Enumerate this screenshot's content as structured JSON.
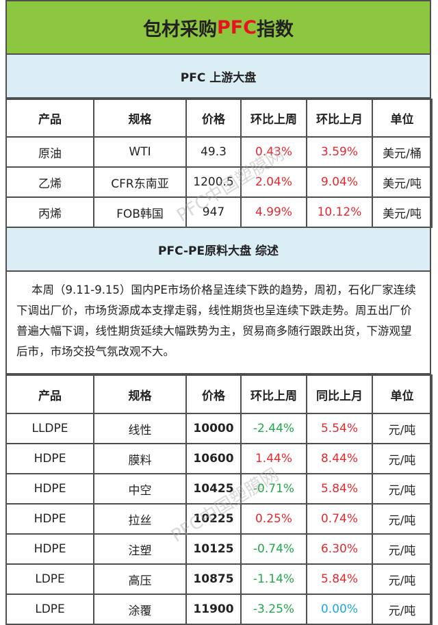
{
  "title": {
    "prefix": "包材采购",
    "highlight": "PFC",
    "suffix": "指数"
  },
  "upstream": {
    "heading": "PFC 上游大盘",
    "headers": [
      "产品",
      "规格",
      "价格",
      "环比上周",
      "环比上月",
      "单位"
    ],
    "rows": [
      {
        "product": "原油",
        "spec": "WTI",
        "price": "49.3",
        "wow": "0.43%",
        "mom": "3.59%",
        "unit": "美元/桶"
      },
      {
        "product": "乙烯",
        "spec": "CFR东南亚",
        "price": "1200.5",
        "wow": "2.04%",
        "mom": "9.04%",
        "unit": "美元/吨"
      },
      {
        "product": "丙烯",
        "spec": "FOB韩国",
        "price": "947",
        "wow": "4.99%",
        "mom": "10.12%",
        "unit": "美元/吨"
      }
    ]
  },
  "pe": {
    "heading": "PFC-PE原料大盘 综述",
    "summary": "本周（9.11-9.15）国内PE市场价格呈连续下跌的趋势，周初，石化厂家连续下调出厂价，市场货源成本支撑走弱，线性期货也呈连续下跌走势。周五出厂价普遍大幅下调，线性期货延续大幅跌势为主，贸易商多随行跟跌出货，下游观望后市，市场交投气氛改观不大。",
    "headers": [
      "产品",
      "规格",
      "价格",
      "环比上周",
      "同比上月",
      "单位"
    ],
    "rows": [
      {
        "product": "LLDPE",
        "spec": "线性",
        "price": "10000",
        "wow": "-2.44%",
        "mom": "5.54%",
        "unit": "元/吨"
      },
      {
        "product": "HDPE",
        "spec": "膜料",
        "price": "10600",
        "wow": "1.44%",
        "mom": "8.44%",
        "unit": "元/吨"
      },
      {
        "product": "HDPE",
        "spec": "中空",
        "price": "10425",
        "wow": "-0.71%",
        "mom": "5.84%",
        "unit": "元/吨"
      },
      {
        "product": "HDPE",
        "spec": "拉丝",
        "price": "10225",
        "wow": "0.25%",
        "mom": "0.74%",
        "unit": "元/吨"
      },
      {
        "product": "HDPE",
        "spec": "注塑",
        "price": "10125",
        "wow": "-0.74%",
        "mom": "6.30%",
        "unit": "元/吨"
      },
      {
        "product": "LDPE",
        "spec": "高压",
        "price": "10875",
        "wow": "-1.14%",
        "mom": "5.84%",
        "unit": "元/吨"
      },
      {
        "product": "LDPE",
        "spec": "涂覆",
        "price": "11900",
        "wow": "-3.25%",
        "mom": "0.00%",
        "unit": "元/吨"
      }
    ]
  },
  "watermark": "PFC中国塑膜网",
  "colors": {
    "up": "#e5282e",
    "down": "#20a84a",
    "flat": "#1aa8e0",
    "title_bg": "#8dc73f",
    "section_bg": "#dbeef5"
  }
}
